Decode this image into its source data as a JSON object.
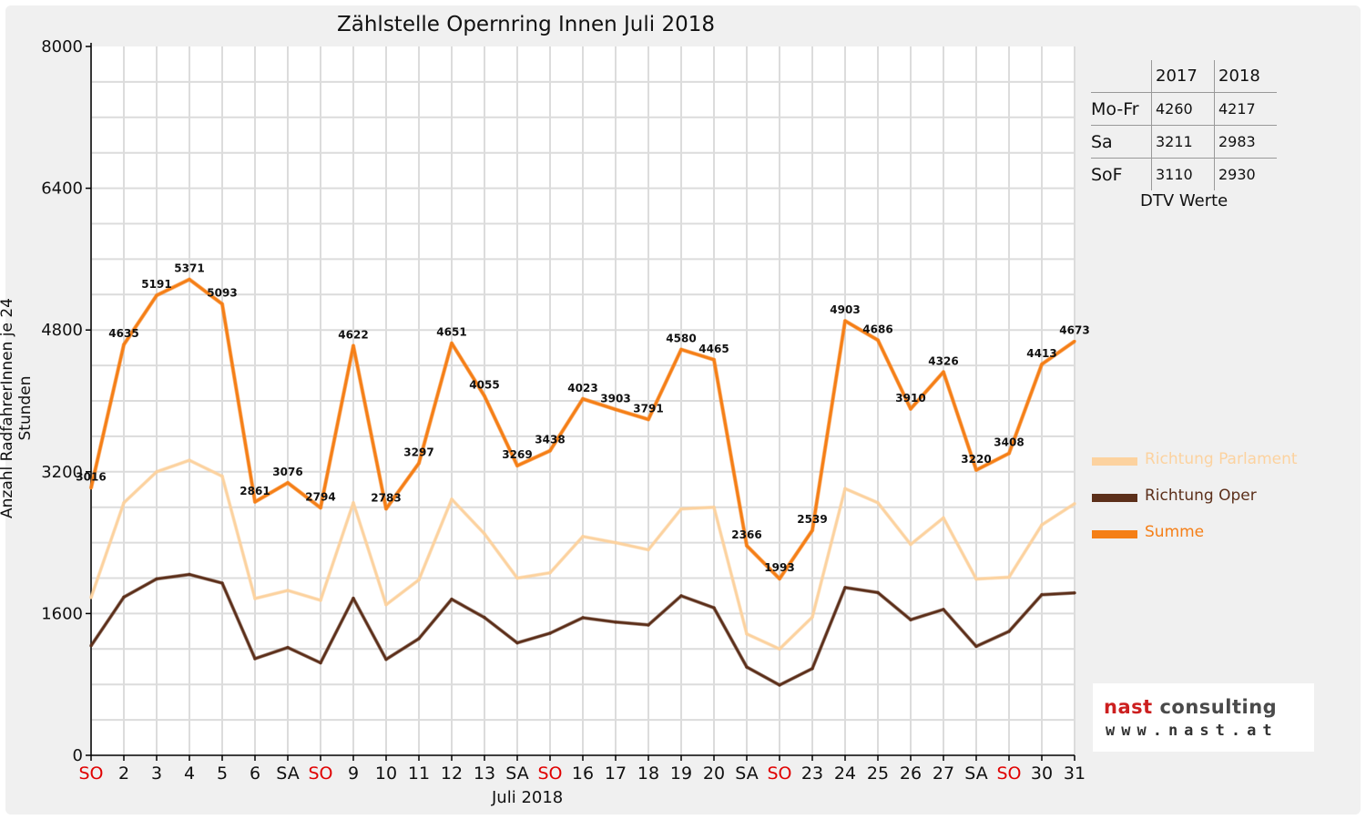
{
  "chart_data": {
    "type": "line",
    "title": "Zählstelle Opernring Innen Juli 2018",
    "xlabel": "Juli 2018",
    "ylabel": "Anzahl RadfahrerInnen je 24 Stunden",
    "ylim": [
      0,
      8000
    ],
    "yticks": [
      0,
      1600,
      3200,
      4800,
      6400,
      8000
    ],
    "grid": true,
    "legend_position": "right",
    "categories": [
      "SO",
      "2",
      "3",
      "4",
      "5",
      "6",
      "SA",
      "SO",
      "9",
      "10",
      "11",
      "12",
      "13",
      "SA",
      "SO",
      "16",
      "17",
      "18",
      "19",
      "20",
      "SA",
      "SO",
      "23",
      "24",
      "25",
      "26",
      "27",
      "SA",
      "SO",
      "30",
      "31"
    ],
    "weekend_categories": [
      0,
      7,
      14,
      21,
      28
    ],
    "series": [
      {
        "name": "Richtung Parlament",
        "color": "#fcd29f",
        "values": [
          1780,
          2850,
          3200,
          3330,
          3150,
          1770,
          1860,
          1750,
          2850,
          1700,
          1980,
          2890,
          2500,
          2000,
          2060,
          2470,
          2400,
          2320,
          2780,
          2800,
          1370,
          1200,
          1560,
          3010,
          2850,
          2380,
          2680,
          1990,
          2010,
          2600,
          2840
        ]
      },
      {
        "name": "Richtung Oper",
        "color": "#5c2f1a",
        "values": [
          1236,
          1785,
          1991,
          2041,
          1943,
          1091,
          1216,
          1044,
          1772,
          1083,
          1317,
          1761,
          1555,
          1269,
          1378,
          1553,
          1503,
          1471,
          1800,
          1665,
          996,
          793,
          979,
          1893,
          1836,
          1530,
          1646,
          1230,
          1398,
          1813,
          1833
        ]
      },
      {
        "name": "Summe",
        "color": "#f57f17",
        "values": [
          3016,
          4635,
          5191,
          5371,
          5093,
          2861,
          3076,
          2794,
          4622,
          2783,
          3297,
          4651,
          4055,
          3269,
          3438,
          4023,
          3903,
          3791,
          4580,
          4465,
          2366,
          1993,
          2539,
          4903,
          4686,
          3910,
          4326,
          3220,
          3408,
          4413,
          4673
        ],
        "data_labels": [
          "3016",
          "4635",
          "5191",
          "5371",
          "5093",
          "2861",
          "3076",
          "2794",
          "4622",
          "2783",
          "3297",
          "4651",
          "4055",
          "3269",
          "3438",
          "4023",
          "3903",
          "3791",
          "4580",
          "4465",
          "2366",
          "1993",
          "2539",
          "4903",
          "4686",
          "3910",
          "4326",
          "3220",
          "3408",
          "4413",
          "4673"
        ]
      }
    ]
  },
  "dtv_table": {
    "headers": [
      "",
      "2017",
      "2018"
    ],
    "rows": [
      {
        "label": "Mo-Fr",
        "v2017": "4260",
        "v2018": "4217"
      },
      {
        "label": "Sa",
        "v2017": "3211",
        "v2018": "2983"
      },
      {
        "label": "SoF",
        "v2017": "3110",
        "v2018": "2930"
      }
    ],
    "caption": "DTV Werte"
  },
  "logo": {
    "line1_a": "nast",
    "line1_b": " consulting",
    "line2": "www.nast.at"
  },
  "colors": {
    "weekend_label": "#e00000",
    "axis": "#000000",
    "grid": "#dcdcdc"
  }
}
